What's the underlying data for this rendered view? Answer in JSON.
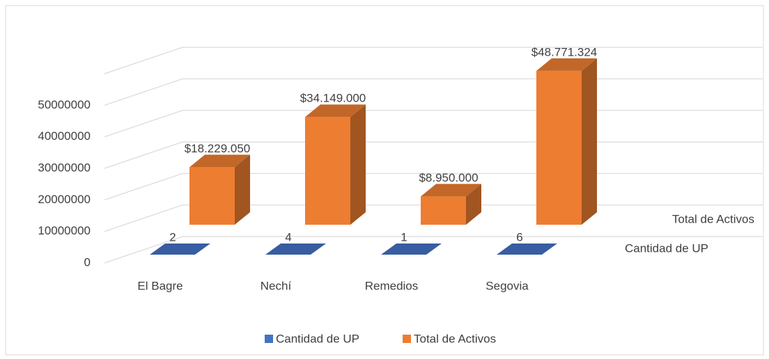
{
  "chart_data": {
    "type": "bar3d",
    "categories": [
      "El Bagre",
      "Nechí",
      "Remedios",
      "Segovia"
    ],
    "series": [
      {
        "name": "Cantidad de UP",
        "color": "#4472c4",
        "values": [
          2,
          4,
          1,
          6
        ]
      },
      {
        "name": "Total de Activos",
        "color": "#ed7d31",
        "values": [
          18229050,
          34149000,
          8950000,
          48771324
        ],
        "value_labels": [
          "$18.229.050",
          "$34.149.000",
          "$8.950.000",
          "$48.771.324"
        ]
      }
    ],
    "ylim": [
      0,
      60000000
    ],
    "yticks": [
      0,
      10000000,
      20000000,
      30000000,
      40000000,
      50000000
    ],
    "grid": true,
    "legend": "bottom"
  }
}
